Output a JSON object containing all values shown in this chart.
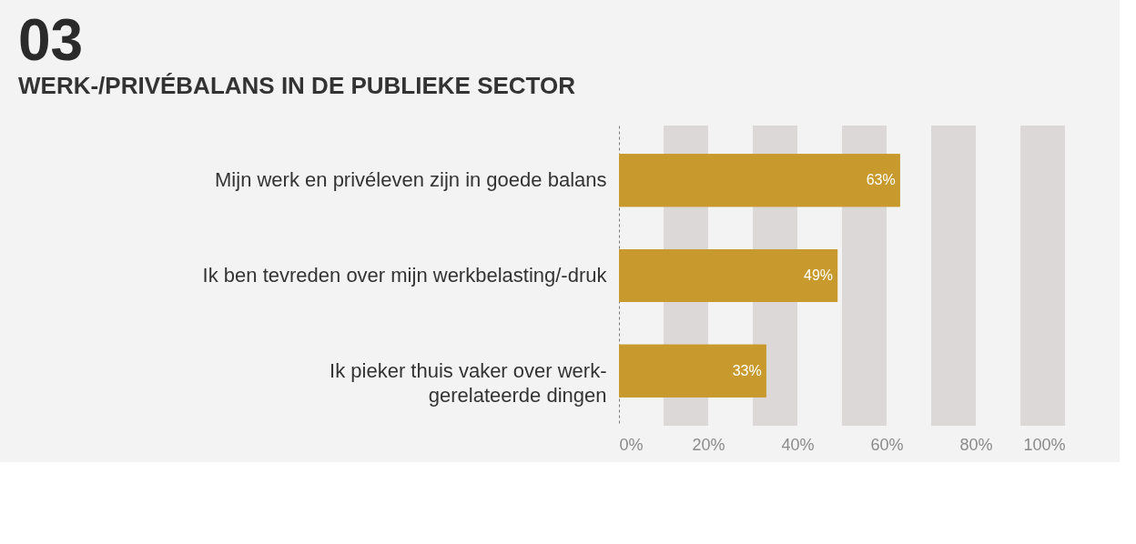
{
  "chart_data": {
    "type": "bar",
    "orientation": "horizontal",
    "title": "03",
    "subtitle": "WERK-/PRIVÉBALANS IN DE PUBLIEKE SECTOR",
    "categories": [
      "Mijn werk en privéleven zijn in goede balans",
      "Ik ben tevreden over mijn werkbelasting/-druk",
      "Ik pieker thuis vaker over werk-gerelateerde dingen"
    ],
    "values": [
      63,
      49,
      33
    ],
    "color": "#c89a2e",
    "value_labels": [
      "63%",
      "49%",
      "33%"
    ],
    "xlim": [
      0,
      100
    ],
    "xticks": [
      {
        "value": 0,
        "label": "0%"
      },
      {
        "value": 20,
        "label": "20%"
      },
      {
        "value": 40,
        "label": "40%"
      },
      {
        "value": 60,
        "label": "60%"
      },
      {
        "value": 80,
        "label": "80%"
      },
      {
        "value": 100,
        "label": "100%"
      }
    ],
    "bands": [
      {
        "axis": "x",
        "from": 10,
        "to": 20,
        "color": "#dcd8d8"
      },
      {
        "axis": "x",
        "from": 30,
        "to": 40,
        "color": "#dcd8d8"
      },
      {
        "axis": "x",
        "from": 50,
        "to": 60,
        "color": "#dcd8d8"
      },
      {
        "axis": "x",
        "from": 70,
        "to": 80,
        "color": "#dcd8d8"
      },
      {
        "axis": "x",
        "from": 90,
        "to": 100,
        "color": "#dcd8d8"
      }
    ],
    "grid": false
  }
}
